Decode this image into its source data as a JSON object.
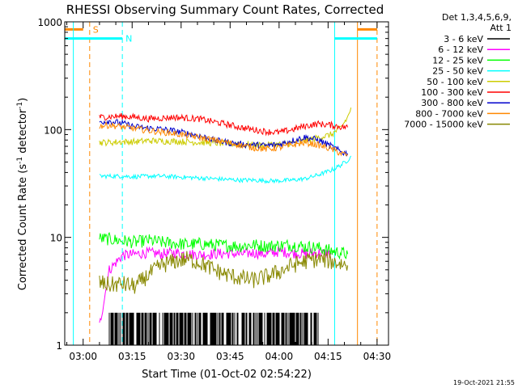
{
  "chart_data": {
    "type": "line",
    "title": "RHESSI Observing Summary Count Rates, Corrected",
    "xlabel": "Start Time (01-Oct-02 02:54:22)",
    "ylabel_main": "Corrected Count Rate (s",
    "ylabel_sup1": "-1",
    "ylabel_mid": " detector",
    "ylabel_sup2": "-1",
    "ylabel_end": ")",
    "yscale": "log",
    "ylim": [
      1,
      1000
    ],
    "ytick_values": [
      1,
      10,
      100,
      1000
    ],
    "ytick_labels": [
      "1",
      "10",
      "100",
      "1000"
    ],
    "xlim": [
      "02:54:22",
      "04:33:30"
    ],
    "xtick_values": [
      "03:00",
      "03:15",
      "03:30",
      "03:45",
      "04:00",
      "04:15",
      "04:30"
    ],
    "xtick_labels": [
      "03:00",
      "03:15",
      "03:30",
      "03:45",
      "04:00",
      "04:15",
      "04:30"
    ],
    "grid": false,
    "legend_title": "Det 1,3,4,5,6,9,",
    "legend_title2": "Att 1",
    "legend_position": "right",
    "footer": "19-Oct-2021 21:55",
    "series": [
      {
        "name": "3 - 6 keV",
        "color": "#000000",
        "x": [
          "03:08",
          "03:12",
          "03:16",
          "03:20",
          "03:24",
          "03:28",
          "03:32",
          "03:36",
          "03:40",
          "03:44",
          "03:48",
          "03:52",
          "03:56",
          "04:00",
          "04:04",
          "04:08",
          "04:12"
        ],
        "y": [
          1.6,
          1.4,
          1.5,
          1.6,
          1.4,
          1.5,
          1.6,
          1.4,
          1.5,
          1.5,
          1.4,
          1.5,
          1.6,
          1.7,
          1.6,
          1.5,
          1.6
        ]
      },
      {
        "name": "6 - 12 keV",
        "color": "#ff00ff",
        "x": [
          "03:05",
          "03:08",
          "03:12",
          "03:16",
          "03:20",
          "03:24",
          "03:28",
          "03:32",
          "03:36",
          "03:40",
          "03:44",
          "03:48",
          "03:52",
          "03:56",
          "04:00",
          "04:04",
          "04:08",
          "04:12",
          "04:16"
        ],
        "y": [
          1.5,
          5.0,
          6.8,
          7.0,
          7.2,
          7.0,
          7.2,
          7.0,
          6.9,
          7.0,
          7.1,
          7.0,
          7.2,
          7.0,
          7.4,
          7.2,
          7.0,
          7.2,
          7.0
        ]
      },
      {
        "name": "12 - 25 keV",
        "color": "#00ff00",
        "x": [
          "03:05",
          "03:08",
          "03:12",
          "03:16",
          "03:20",
          "03:24",
          "03:28",
          "03:32",
          "03:36",
          "03:40",
          "03:44",
          "03:48",
          "03:52",
          "03:56",
          "04:00",
          "04:04",
          "04:08",
          "04:12",
          "04:16",
          "04:21"
        ],
        "y": [
          9.8,
          9.6,
          9.3,
          9.0,
          9.4,
          9.0,
          8.8,
          8.6,
          8.7,
          8.5,
          8.4,
          8.3,
          8.5,
          8.3,
          8.4,
          8.5,
          8.2,
          8.0,
          7.5,
          7.0
        ]
      },
      {
        "name": "25 - 50 keV",
        "color": "#00ffff",
        "x": [
          "03:05",
          "03:08",
          "03:12",
          "03:16",
          "03:20",
          "03:24",
          "03:28",
          "03:32",
          "03:36",
          "03:40",
          "03:44",
          "03:48",
          "03:52",
          "03:56",
          "04:00",
          "04:04",
          "04:08",
          "04:12",
          "04:16",
          "04:19",
          "04:21",
          "04:22"
        ],
        "y": [
          37,
          37,
          37,
          36.5,
          37,
          37,
          36.5,
          36,
          35.5,
          35,
          34.5,
          34,
          34,
          33.5,
          33.5,
          34,
          35,
          38,
          42,
          47,
          52,
          57
        ]
      },
      {
        "name": "50 - 100 keV",
        "color": "#cccc00",
        "x": [
          "03:05",
          "03:08",
          "03:12",
          "03:16",
          "03:20",
          "03:24",
          "03:28",
          "03:32",
          "03:36",
          "03:40",
          "03:44",
          "03:48",
          "03:52",
          "03:56",
          "04:00",
          "04:04",
          "04:08",
          "04:12",
          "04:16",
          "04:19",
          "04:21",
          "04:22"
        ],
        "y": [
          76,
          76,
          77,
          77,
          79,
          78,
          78,
          77,
          76,
          75,
          74,
          73,
          72,
          72,
          73,
          75,
          79,
          84,
          90,
          105,
          130,
          160
        ]
      },
      {
        "name": "100 - 300 keV",
        "color": "#ff0000",
        "x": [
          "03:05",
          "03:08",
          "03:12",
          "03:16",
          "03:20",
          "03:24",
          "03:28",
          "03:32",
          "03:36",
          "03:40",
          "03:44",
          "03:48",
          "03:52",
          "03:56",
          "04:00",
          "04:04",
          "04:08",
          "04:12",
          "04:16",
          "04:19",
          "04:21"
        ],
        "y": [
          130,
          132,
          133,
          130,
          126,
          128,
          130,
          128,
          125,
          118,
          112,
          105,
          100,
          96,
          94,
          100,
          108,
          113,
          110,
          106,
          105
        ]
      },
      {
        "name": "300 - 800 keV",
        "color": "#0000cc",
        "x": [
          "03:05",
          "03:08",
          "03:12",
          "03:16",
          "03:20",
          "03:24",
          "03:28",
          "03:32",
          "03:36",
          "03:40",
          "03:44",
          "03:48",
          "03:52",
          "03:56",
          "04:00",
          "04:04",
          "04:08",
          "04:12",
          "04:16",
          "04:19",
          "04:21"
        ],
        "y": [
          118,
          120,
          114,
          106,
          103,
          101,
          97,
          92,
          87,
          80,
          76,
          73,
          72,
          71,
          73,
          79,
          85,
          80,
          70,
          62,
          60
        ]
      },
      {
        "name": "800 - 7000 keV",
        "color": "#ff8800",
        "x": [
          "03:05",
          "03:08",
          "03:12",
          "03:16",
          "03:20",
          "03:24",
          "03:28",
          "03:32",
          "03:36",
          "03:40",
          "03:44",
          "03:48",
          "03:52",
          "03:56",
          "04:00",
          "04:04",
          "04:08",
          "04:12",
          "04:16",
          "04:19",
          "04:21"
        ],
        "y": [
          108,
          110,
          106,
          102,
          98,
          95,
          92,
          88,
          84,
          80,
          76,
          72,
          68,
          66,
          68,
          72,
          76,
          72,
          66,
          60,
          58
        ]
      },
      {
        "name": "7000 - 15000 keV",
        "color": "#888800",
        "x": [
          "03:05",
          "03:08",
          "03:12",
          "03:16",
          "03:20",
          "03:24",
          "03:28",
          "03:32",
          "03:36",
          "03:40",
          "03:44",
          "03:48",
          "03:52",
          "03:56",
          "04:00",
          "04:04",
          "04:08",
          "04:12",
          "04:16",
          "04:21"
        ],
        "y": [
          3.8,
          3.6,
          3.7,
          3.5,
          4.5,
          5.5,
          6.0,
          6.3,
          5.8,
          5.0,
          4.5,
          4.2,
          4.0,
          4.3,
          4.8,
          5.5,
          6.0,
          6.3,
          6.0,
          5.5
        ]
      }
    ],
    "flags": [
      {
        "label": "S",
        "color": "#ff8800",
        "y": 850,
        "intervals": [
          [
            "02:54:22",
            "03:00"
          ],
          [
            "04:24",
            "04:30"
          ]
        ],
        "dashed_x": [
          "03:02",
          "04:30"
        ],
        "solid_x": [
          "04:24"
        ]
      },
      {
        "label": "N",
        "color": "#00ffff",
        "y": 700,
        "intervals": [
          [
            "02:54:22",
            "03:12"
          ],
          [
            "04:17",
            "04:30"
          ]
        ],
        "dashed_x": [
          "03:12"
        ],
        "solid_x": [
          "02:57",
          "04:17"
        ]
      }
    ]
  }
}
